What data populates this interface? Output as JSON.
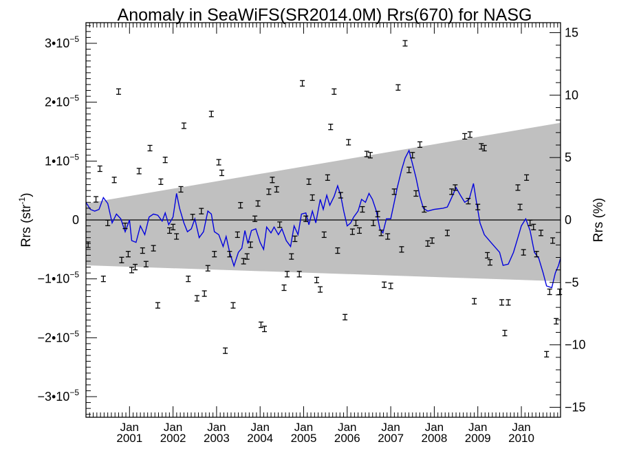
{
  "chart_data": {
    "type": "scatter",
    "title": "Anomaly in SeaWiFS(SR2014.0M) Rrs(670) for NASG",
    "ylabel_left_main": "Rrs (str",
    "ylabel_left_sup": "-1",
    "ylabel_left_close": ")",
    "ylabel_right": "Rrs (%)",
    "xlim": [
      2000.0,
      2010.9
    ],
    "ylim_left": [
      -3.35e-05,
      3.35e-05
    ],
    "ylim_right": [
      -15.8,
      15.8
    ],
    "grid": false,
    "x_ticks": [
      {
        "month": "Jan",
        "year": "2001",
        "x": 2001.0
      },
      {
        "month": "Jan",
        "year": "2002",
        "x": 2002.0
      },
      {
        "month": "Jan",
        "year": "2003",
        "x": 2003.0
      },
      {
        "month": "Jan",
        "year": "2004",
        "x": 2004.0
      },
      {
        "month": "Jan",
        "year": "2005",
        "x": 2005.0
      },
      {
        "month": "Jan",
        "year": "2006",
        "x": 2006.0
      },
      {
        "month": "Jan",
        "year": "2007",
        "x": 2007.0
      },
      {
        "month": "Jan",
        "year": "2008",
        "x": 2008.0
      },
      {
        "month": "Jan",
        "year": "2009",
        "x": 2009.0
      },
      {
        "month": "Jan",
        "year": "2010",
        "x": 2010.0
      }
    ],
    "y_ticks_left": [
      {
        "mantissa": "3",
        "exp": "−5",
        "value": 3e-05
      },
      {
        "mantissa": "2",
        "exp": "−5",
        "value": 2e-05
      },
      {
        "mantissa": "1",
        "exp": "−5",
        "value": 1e-05
      },
      {
        "mantissa": "0",
        "exp": "",
        "value": 0
      },
      {
        "mantissa": "−1",
        "exp": "−5",
        "value": -1e-05
      },
      {
        "mantissa": "−2",
        "exp": "−5",
        "value": -2e-05
      },
      {
        "mantissa": "−3",
        "exp": "−5",
        "value": -3e-05
      }
    ],
    "y_ticks_right": [
      {
        "label": "15",
        "value": 15
      },
      {
        "label": "10",
        "value": 10
      },
      {
        "label": "5",
        "value": 5
      },
      {
        "label": "0",
        "value": 0
      },
      {
        "label": "−5",
        "value": -5
      },
      {
        "label": "−10",
        "value": -10
      },
      {
        "label": "−15",
        "value": -15
      }
    ],
    "band": {
      "color": "#c0c0c0",
      "upper": [
        [
          2000.0,
          2.8e-06
        ],
        [
          2010.9,
          1.65e-05
        ]
      ],
      "lower": [
        [
          2000.0,
          -7.7e-06
        ],
        [
          2010.9,
          -1.04e-05
        ]
      ]
    },
    "zero_line_color": "#000000",
    "line_series_color": "#0000dd",
    "points_color": "#000000",
    "line_series": [
      [
        2000.0,
        3e-06
      ],
      [
        2000.1,
        1.8e-06
      ],
      [
        2000.2,
        1.5e-06
      ],
      [
        2000.3,
        1.8e-06
      ],
      [
        2000.4,
        3.8e-06
      ],
      [
        2000.5,
        2.8e-06
      ],
      [
        2000.6,
        -5e-07
      ],
      [
        2000.7,
        1e-06
      ],
      [
        2000.8,
        2e-07
      ],
      [
        2000.9,
        -2e-06
      ],
      [
        2001.0,
        0.0
      ],
      [
        2001.05,
        -3.5e-06
      ],
      [
        2001.15,
        -3.8e-06
      ],
      [
        2001.25,
        -1e-06
      ],
      [
        2001.35,
        -2.5e-06
      ],
      [
        2001.45,
        5e-07
      ],
      [
        2001.55,
        1e-06
      ],
      [
        2001.65,
        8e-07
      ],
      [
        2001.75,
        -2e-07
      ],
      [
        2001.82,
        1.2e-06
      ],
      [
        2001.9,
        -8e-07
      ],
      [
        2002.0,
        5e-07
      ],
      [
        2002.08,
        4.5e-06
      ],
      [
        2002.15,
        2e-06
      ],
      [
        2002.25,
        -5e-07
      ],
      [
        2002.33,
        -2e-06
      ],
      [
        2002.42,
        -1.5e-06
      ],
      [
        2002.5,
        2e-07
      ],
      [
        2002.6,
        -3e-06
      ],
      [
        2002.7,
        -2e-06
      ],
      [
        2002.8,
        1.5e-06
      ],
      [
        2002.88,
        1e-06
      ],
      [
        2002.95,
        -2e-06
      ],
      [
        2003.05,
        -2.5e-06
      ],
      [
        2003.15,
        -4.5e-06
      ],
      [
        2003.22,
        -2.8e-06
      ],
      [
        2003.3,
        -5.5e-06
      ],
      [
        2003.4,
        -7.8e-06
      ],
      [
        2003.5,
        -5.5e-06
      ],
      [
        2003.58,
        -4.8e-06
      ],
      [
        2003.65,
        -1.8e-06
      ],
      [
        2003.72,
        -4e-06
      ],
      [
        2003.8,
        -1.8e-06
      ],
      [
        2003.9,
        -1.5e-06
      ],
      [
        2004.0,
        -3.8e-06
      ],
      [
        2004.08,
        -5e-06
      ],
      [
        2004.15,
        -1.2e-06
      ],
      [
        2004.25,
        -2.2e-06
      ],
      [
        2004.32,
        -1.2e-06
      ],
      [
        2004.42,
        -2.5e-06
      ],
      [
        2004.5,
        -1.5e-06
      ],
      [
        2004.6,
        -3.5e-06
      ],
      [
        2004.7,
        -4.5e-06
      ],
      [
        2004.78,
        -1e-06
      ],
      [
        2004.87,
        -2.5e-06
      ],
      [
        2004.95,
        1e-06
      ],
      [
        2005.05,
        1.2e-06
      ],
      [
        2005.12,
        -8e-07
      ],
      [
        2005.2,
        1.5e-06
      ],
      [
        2005.28,
        -5e-07
      ],
      [
        2005.38,
        3.5e-06
      ],
      [
        2005.45,
        1.8e-06
      ],
      [
        2005.53,
        4.2e-06
      ],
      [
        2005.6,
        2.5e-06
      ],
      [
        2005.7,
        4e-06
      ],
      [
        2005.78,
        5.8e-06
      ],
      [
        2005.85,
        4.2e-06
      ],
      [
        2005.92,
        1.5e-06
      ],
      [
        2006.0,
        -1e-06
      ],
      [
        2006.08,
        -5e-07
      ],
      [
        2006.15,
        5e-07
      ],
      [
        2006.25,
        1.5e-06
      ],
      [
        2006.33,
        3.5e-06
      ],
      [
        2006.42,
        3e-06
      ],
      [
        2006.5,
        4.5e-06
      ],
      [
        2006.58,
        3.5e-06
      ],
      [
        2006.67,
        1.5e-06
      ],
      [
        2006.75,
        -1.5e-06
      ],
      [
        2006.82,
        -2.2e-06
      ],
      [
        2006.9,
        2e-07
      ],
      [
        2007.0,
        2e-07
      ],
      [
        2007.08,
        3e-06
      ],
      [
        2007.15,
        5.5e-06
      ],
      [
        2007.25,
        8.5e-06
      ],
      [
        2007.33,
        1.05e-05
      ],
      [
        2007.42,
        1.18e-05
      ],
      [
        2007.5,
        9.5e-06
      ],
      [
        2007.58,
        7.2e-06
      ],
      [
        2007.67,
        4e-06
      ],
      [
        2007.75,
        2e-06
      ],
      [
        2007.85,
        1.5e-06
      ],
      [
        2008.0,
        1.8e-06
      ],
      [
        2008.2,
        2e-06
      ],
      [
        2008.3,
        2.2e-06
      ],
      [
        2008.4,
        3.8e-06
      ],
      [
        2008.5,
        5.5e-06
      ],
      [
        2008.6,
        4.2e-06
      ],
      [
        2008.7,
        3e-06
      ],
      [
        2008.8,
        3.5e-06
      ],
      [
        2008.9,
        6.2e-06
      ],
      [
        2008.97,
        3e-06
      ],
      [
        2009.05,
        -5e-07
      ],
      [
        2009.15,
        -2.5e-06
      ],
      [
        2009.3,
        -3.8e-06
      ],
      [
        2009.5,
        -5.5e-06
      ],
      [
        2009.58,
        -7.7e-06
      ],
      [
        2009.7,
        -7.5e-06
      ],
      [
        2009.82,
        -5.5e-06
      ],
      [
        2009.92,
        -3e-06
      ],
      [
        2010.0,
        -1e-06
      ],
      [
        2010.1,
        2e-07
      ],
      [
        2010.2,
        -1.8e-06
      ],
      [
        2010.3,
        -5.5e-06
      ],
      [
        2010.4,
        -6.5e-06
      ],
      [
        2010.5,
        -9e-06
      ],
      [
        2010.58,
        -1.12e-05
      ],
      [
        2010.7,
        -1.15e-05
      ],
      [
        2010.78,
        -9e-06
      ],
      [
        2010.85,
        -7.8e-06
      ],
      [
        2010.9,
        -6.5e-06
      ]
    ],
    "points": [
      [
        2000.05,
        -4.2e-06
      ],
      [
        2000.23,
        3.5e-06
      ],
      [
        2000.32,
        8.7e-06
      ],
      [
        2000.4,
        -1e-05
      ],
      [
        2000.5,
        -5e-07
      ],
      [
        2000.65,
        6.8e-06
      ],
      [
        2000.75,
        2.18e-05
      ],
      [
        2000.82,
        -6.8e-06
      ],
      [
        2000.9,
        -1e-06
      ],
      [
        2000.97,
        -5.8e-06
      ],
      [
        2001.05,
        -8.5e-06
      ],
      [
        2001.13,
        -8e-06
      ],
      [
        2001.22,
        8.3e-06
      ],
      [
        2001.3,
        -5.2e-06
      ],
      [
        2001.38,
        -7.5e-06
      ],
      [
        2001.47,
        1.22e-05
      ],
      [
        2001.55,
        -4.8e-06
      ],
      [
        2001.65,
        -1.45e-05
      ],
      [
        2001.72,
        6.5e-06
      ],
      [
        2001.82,
        1.02e-05
      ],
      [
        2001.92,
        -1.8e-06
      ],
      [
        2002.0,
        -1.2e-06
      ],
      [
        2002.08,
        -2.8e-06
      ],
      [
        2002.18,
        5.2e-06
      ],
      [
        2002.25,
        1.6e-05
      ],
      [
        2002.35,
        -1e-05
      ],
      [
        2002.45,
        5e-07
      ],
      [
        2002.55,
        -1.33e-05
      ],
      [
        2002.65,
        1.5e-06
      ],
      [
        2002.72,
        -1.25e-05
      ],
      [
        2002.8,
        -8.2e-06
      ],
      [
        2002.88,
        1.8e-05
      ],
      [
        2002.95,
        -5.8e-06
      ],
      [
        2003.05,
        9.8e-06
      ],
      [
        2003.12,
        8e-06
      ],
      [
        2003.2,
        -2.22e-05
      ],
      [
        2003.3,
        -5.8e-06
      ],
      [
        2003.38,
        -1.45e-05
      ],
      [
        2003.48,
        -2.5e-06
      ],
      [
        2003.55,
        2.5e-06
      ],
      [
        2003.62,
        -7e-06
      ],
      [
        2003.7,
        -6.2e-06
      ],
      [
        2003.78,
        -4.2e-06
      ],
      [
        2003.88,
        2e-07
      ],
      [
        2003.95,
        2.8e-06
      ],
      [
        2004.02,
        -1.78e-05
      ],
      [
        2004.1,
        -1.85e-05
      ],
      [
        2004.2,
        4.8e-06
      ],
      [
        2004.28,
        6.8e-06
      ],
      [
        2004.38,
        5.2e-06
      ],
      [
        2004.45,
        -8e-07
      ],
      [
        2004.55,
        -1.15e-05
      ],
      [
        2004.62,
        -9.2e-06
      ],
      [
        2004.72,
        -6.2e-06
      ],
      [
        2004.8,
        -3.2e-06
      ],
      [
        2004.9,
        -9.2e-06
      ],
      [
        2004.97,
        2.32e-05
      ],
      [
        2005.05,
        2e-07
      ],
      [
        2005.12,
        6.5e-06
      ],
      [
        2005.2,
        3.8e-06
      ],
      [
        2005.3,
        -1.02e-05
      ],
      [
        2005.38,
        -1.18e-05
      ],
      [
        2005.47,
        -2.5e-06
      ],
      [
        2005.55,
        7.2e-06
      ],
      [
        2005.62,
        1.58e-05
      ],
      [
        2005.7,
        2.18e-05
      ],
      [
        2005.78,
        -5.2e-06
      ],
      [
        2005.85,
        4.2e-06
      ],
      [
        2005.95,
        -1.65e-05
      ],
      [
        2006.03,
        1.32e-05
      ],
      [
        2006.12,
        -2e-06
      ],
      [
        2006.2,
        -5e-07
      ],
      [
        2006.28,
        -1.8e-06
      ],
      [
        2006.35,
        1.8e-06
      ],
      [
        2006.45,
        1.12e-05
      ],
      [
        2006.53,
        1.1e-05
      ],
      [
        2006.6,
        -5e-07
      ],
      [
        2006.7,
        1e-06
      ],
      [
        2006.78,
        -2.2e-06
      ],
      [
        2006.85,
        -1.1e-05
      ],
      [
        2006.93,
        -2.8e-06
      ],
      [
        2007.0,
        -1.12e-05
      ],
      [
        2007.08,
        4.8e-06
      ],
      [
        2007.17,
        2.25e-05
      ],
      [
        2007.25,
        -5e-06
      ],
      [
        2007.33,
        3e-05
      ],
      [
        2007.42,
        8.5e-06
      ],
      [
        2007.5,
        1.1e-05
      ],
      [
        2007.58,
        4.5e-06
      ],
      [
        2007.67,
        1.28e-05
      ],
      [
        2007.77,
        1.8e-06
      ],
      [
        2007.85,
        -4e-06
      ],
      [
        2007.95,
        -3.5e-06
      ],
      [
        2008.3,
        -2.2e-06
      ],
      [
        2008.4,
        4.8e-06
      ],
      [
        2008.48,
        5.5e-06
      ],
      [
        2008.7,
        1.42e-05
      ],
      [
        2008.78,
        3.2e-06
      ],
      [
        2008.82,
        1.45e-05
      ],
      [
        2008.92,
        -1.38e-05
      ],
      [
        2009.0,
        2.2e-06
      ],
      [
        2009.08,
        1.25e-05
      ],
      [
        2009.15,
        1.22e-05
      ],
      [
        2009.22,
        -6e-06
      ],
      [
        2009.28,
        -7.2e-06
      ],
      [
        2009.55,
        -1.4e-05
      ],
      [
        2009.62,
        -1.92e-05
      ],
      [
        2009.7,
        -1.4e-05
      ],
      [
        2009.92,
        5.5e-06
      ],
      [
        2009.97,
        2.2e-06
      ],
      [
        2010.05,
        -5.5e-06
      ],
      [
        2010.12,
        7.2e-06
      ],
      [
        2010.2,
        -5e-07
      ],
      [
        2010.28,
        -1.2e-06
      ],
      [
        2010.35,
        -5.8e-06
      ],
      [
        2010.45,
        -2.2e-06
      ],
      [
        2010.58,
        -2.28e-05
      ],
      [
        2010.65,
        -1.22e-05
      ],
      [
        2010.72,
        -3.5e-06
      ],
      [
        2010.8,
        -1.72e-05
      ],
      [
        2010.88,
        -1.22e-05
      ]
    ]
  }
}
